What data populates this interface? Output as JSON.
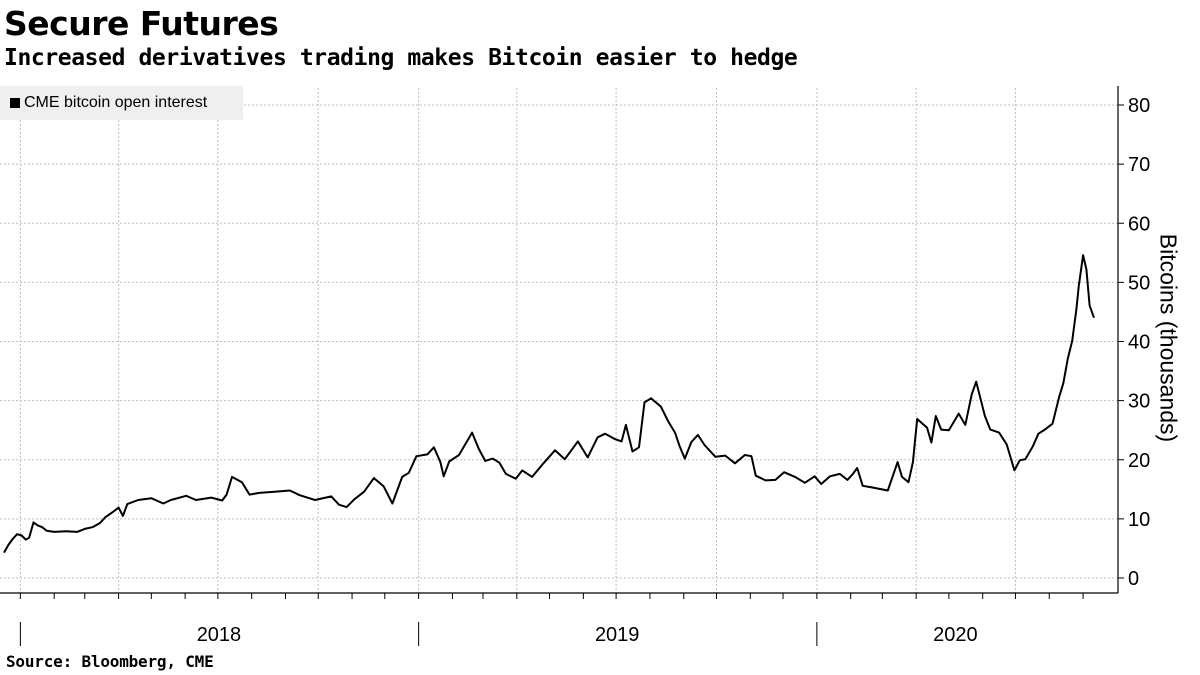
{
  "header": {
    "title": "Secure Futures",
    "subtitle": "Increased derivatives trading makes Bitcoin easier to hedge"
  },
  "footer": {
    "source": "Source: Bloomberg, CME"
  },
  "legend": {
    "label": "CME bitcoin open interest",
    "placement": "top-left"
  },
  "colors": {
    "line": "#000000",
    "grid": "#bfbfbf",
    "legend_bg": "#efefef"
  },
  "chart_data": {
    "type": "line",
    "title": "Secure Futures",
    "subtitle": "Increased derivatives trading makes Bitcoin easier to hedge",
    "ylabel": "Bitcoins (thousands)",
    "xlabel": "",
    "ylim": [
      0,
      80
    ],
    "yticks": [
      0,
      10,
      20,
      30,
      40,
      50,
      60,
      70,
      80
    ],
    "x_tick_labels": [
      "2018",
      "2019",
      "2020"
    ],
    "xlim": [
      "2017-12-17",
      "2020-09-11"
    ],
    "grid": true,
    "legend": "top-left",
    "series": [
      {
        "name": "CME bitcoin open interest",
        "points": [
          [
            "2017-12-17",
            4.3
          ],
          [
            "2017-12-21",
            5.6
          ],
          [
            "2017-12-25",
            6.6
          ],
          [
            "2017-12-29",
            7.4
          ],
          [
            "2018-01-02",
            7.2
          ],
          [
            "2018-01-06",
            6.5
          ],
          [
            "2018-01-09",
            6.8
          ],
          [
            "2018-01-13",
            9.4
          ],
          [
            "2018-01-17",
            8.9
          ],
          [
            "2018-01-21",
            8.6
          ],
          [
            "2018-01-25",
            8.0
          ],
          [
            "2018-02-01",
            7.8
          ],
          [
            "2018-02-12",
            7.9
          ],
          [
            "2018-02-22",
            7.8
          ],
          [
            "2018-03-01",
            8.3
          ],
          [
            "2018-03-08",
            8.6
          ],
          [
            "2018-03-15",
            9.3
          ],
          [
            "2018-03-20",
            10.3
          ],
          [
            "2018-03-27",
            11.2
          ],
          [
            "2018-04-01",
            11.9
          ],
          [
            "2018-04-05",
            10.5
          ],
          [
            "2018-04-09",
            12.5
          ],
          [
            "2018-04-19",
            13.2
          ],
          [
            "2018-05-01",
            13.5
          ],
          [
            "2018-05-12",
            12.6
          ],
          [
            "2018-05-19",
            13.2
          ],
          [
            "2018-06-02",
            13.9
          ],
          [
            "2018-06-11",
            13.2
          ],
          [
            "2018-06-25",
            13.6
          ],
          [
            "2018-07-05",
            13.1
          ],
          [
            "2018-07-09",
            14.1
          ],
          [
            "2018-07-14",
            17.1
          ],
          [
            "2018-07-23",
            16.2
          ],
          [
            "2018-07-30",
            14.1
          ],
          [
            "2018-08-08",
            14.4
          ],
          [
            "2018-08-22",
            14.6
          ],
          [
            "2018-09-05",
            14.8
          ],
          [
            "2018-09-14",
            14.0
          ],
          [
            "2018-09-28",
            13.2
          ],
          [
            "2018-10-13",
            13.8
          ],
          [
            "2018-10-20",
            12.4
          ],
          [
            "2018-10-27",
            12.0
          ],
          [
            "2018-11-03",
            13.3
          ],
          [
            "2018-11-12",
            14.6
          ],
          [
            "2018-11-21",
            16.9
          ],
          [
            "2018-11-30",
            15.5
          ],
          [
            "2018-12-08",
            12.6
          ],
          [
            "2018-12-17",
            17.1
          ],
          [
            "2018-12-23",
            17.8
          ],
          [
            "2018-12-30",
            20.6
          ],
          [
            "2019-01-09",
            20.9
          ],
          [
            "2019-01-15",
            22.1
          ],
          [
            "2019-01-21",
            19.6
          ],
          [
            "2019-01-24",
            17.2
          ],
          [
            "2019-01-29",
            19.7
          ],
          [
            "2019-02-07",
            20.8
          ],
          [
            "2019-02-19",
            24.6
          ],
          [
            "2019-02-25",
            21.9
          ],
          [
            "2019-03-03",
            19.8
          ],
          [
            "2019-03-10",
            20.2
          ],
          [
            "2019-03-16",
            19.5
          ],
          [
            "2019-03-22",
            17.6
          ],
          [
            "2019-03-31",
            16.8
          ],
          [
            "2019-04-06",
            18.2
          ],
          [
            "2019-04-15",
            17.1
          ],
          [
            "2019-04-24",
            19.1
          ],
          [
            "2019-05-06",
            21.6
          ],
          [
            "2019-05-15",
            20.1
          ],
          [
            "2019-05-27",
            23.1
          ],
          [
            "2019-06-05",
            20.4
          ],
          [
            "2019-06-14",
            23.8
          ],
          [
            "2019-06-21",
            24.4
          ],
          [
            "2019-06-30",
            23.5
          ],
          [
            "2019-07-06",
            23.1
          ],
          [
            "2019-07-10",
            25.9
          ],
          [
            "2019-07-16",
            21.4
          ],
          [
            "2019-07-22",
            22.1
          ],
          [
            "2019-07-27",
            29.7
          ],
          [
            "2019-08-02",
            30.4
          ],
          [
            "2019-08-11",
            29.0
          ],
          [
            "2019-08-18",
            26.4
          ],
          [
            "2019-08-24",
            24.6
          ],
          [
            "2019-08-28",
            22.4
          ],
          [
            "2019-09-02",
            20.2
          ],
          [
            "2019-09-08",
            23.0
          ],
          [
            "2019-09-14",
            24.2
          ],
          [
            "2019-09-20",
            22.5
          ],
          [
            "2019-09-30",
            20.5
          ],
          [
            "2019-10-09",
            20.7
          ],
          [
            "2019-10-18",
            19.4
          ],
          [
            "2019-10-27",
            20.8
          ],
          [
            "2019-11-02",
            20.6
          ],
          [
            "2019-11-06",
            17.3
          ],
          [
            "2019-11-15",
            16.5
          ],
          [
            "2019-11-24",
            16.6
          ],
          [
            "2019-12-02",
            17.9
          ],
          [
            "2019-12-12",
            17.1
          ],
          [
            "2019-12-21",
            16.1
          ],
          [
            "2019-12-30",
            17.2
          ],
          [
            "2020-01-05",
            15.9
          ],
          [
            "2020-01-13",
            17.2
          ],
          [
            "2020-01-22",
            17.6
          ],
          [
            "2020-01-29",
            16.6
          ],
          [
            "2020-02-03",
            17.6
          ],
          [
            "2020-02-07",
            18.6
          ],
          [
            "2020-02-12",
            15.6
          ],
          [
            "2020-02-21",
            15.3
          ],
          [
            "2020-03-06",
            14.8
          ],
          [
            "2020-03-15",
            19.6
          ],
          [
            "2020-03-19",
            17.1
          ],
          [
            "2020-03-25",
            16.2
          ],
          [
            "2020-03-29",
            19.6
          ],
          [
            "2020-04-02",
            26.9
          ],
          [
            "2020-04-11",
            25.4
          ],
          [
            "2020-04-15",
            22.9
          ],
          [
            "2020-04-19",
            27.4
          ],
          [
            "2020-04-24",
            25.1
          ],
          [
            "2020-05-01",
            25.0
          ],
          [
            "2020-05-10",
            27.8
          ],
          [
            "2020-05-16",
            25.9
          ],
          [
            "2020-05-22",
            31.1
          ],
          [
            "2020-05-26",
            33.2
          ],
          [
            "2020-06-03",
            27.4
          ],
          [
            "2020-06-08",
            25.1
          ],
          [
            "2020-06-16",
            24.6
          ],
          [
            "2020-06-23",
            22.6
          ],
          [
            "2020-06-30",
            18.2
          ],
          [
            "2020-07-05",
            19.9
          ],
          [
            "2020-07-10",
            20.1
          ],
          [
            "2020-07-17",
            22.3
          ],
          [
            "2020-07-22",
            24.4
          ],
          [
            "2020-07-28",
            25.1
          ],
          [
            "2020-08-04",
            26.1
          ],
          [
            "2020-08-10",
            30.6
          ],
          [
            "2020-08-14",
            33.0
          ],
          [
            "2020-08-18",
            37.1
          ],
          [
            "2020-08-22",
            40.1
          ],
          [
            "2020-08-26",
            45.6
          ],
          [
            "2020-08-28",
            49.3
          ],
          [
            "2020-09-01",
            54.6
          ],
          [
            "2020-09-04",
            52.2
          ],
          [
            "2020-09-07",
            46.1
          ],
          [
            "2020-09-11",
            44.0
          ]
        ]
      }
    ]
  }
}
